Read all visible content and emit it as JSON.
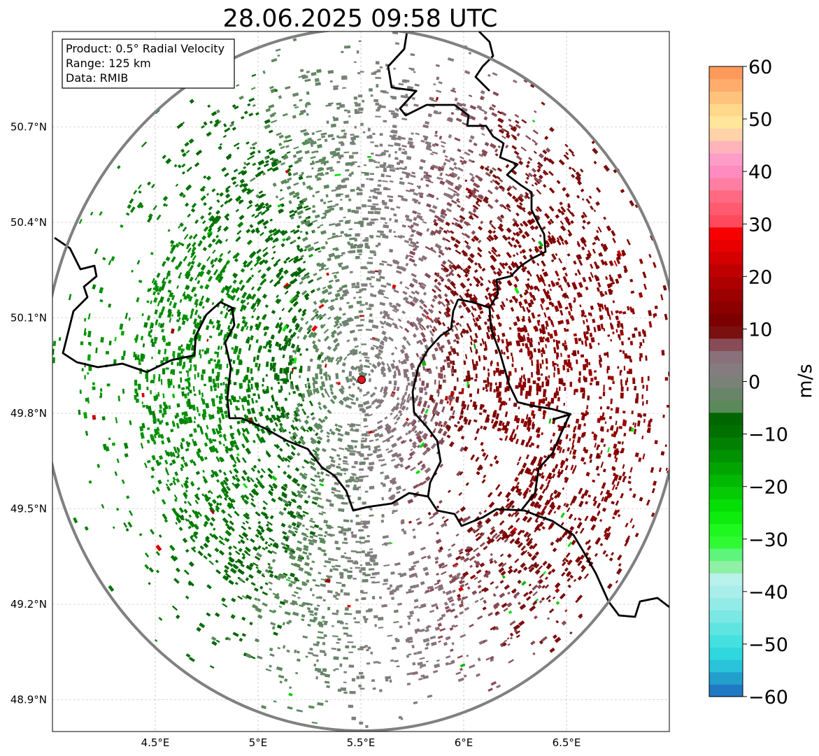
{
  "title": "28.06.2025 09:58 UTC",
  "info_box": {
    "product": "Product: 0.5° Radial Velocity",
    "range": "Range: 125 km",
    "data": "Data: RMIB"
  },
  "map": {
    "lon_range": [
      4.0,
      7.0
    ],
    "lat_range": [
      48.8,
      51.0
    ],
    "lon_ticks": [
      {
        "value": 4.5,
        "label": "4.5°E"
      },
      {
        "value": 5.0,
        "label": "5°E"
      },
      {
        "value": 5.5,
        "label": "5.5°E"
      },
      {
        "value": 6.0,
        "label": "6°E"
      },
      {
        "value": 6.5,
        "label": "6.5°E"
      }
    ],
    "lat_ticks": [
      {
        "value": 50.7,
        "label": "50.7°N"
      },
      {
        "value": 50.4,
        "label": "50.4°N"
      },
      {
        "value": 50.1,
        "label": "50.1°N"
      },
      {
        "value": 49.8,
        "label": "49.8°N"
      },
      {
        "value": 49.5,
        "label": "49.5°N"
      },
      {
        "value": 49.2,
        "label": "49.2°N"
      },
      {
        "value": 48.9,
        "label": "48.9°N"
      }
    ],
    "grid": true,
    "radar_site": {
      "lon": 5.505,
      "lat": 49.914
    },
    "range_ring_km": 125,
    "radar_color": "#e8141c",
    "ring_color": "#808080",
    "border_color": "#000000"
  },
  "colorbar": {
    "label": "m/s",
    "vmin": -60,
    "vmax": 60,
    "ticks": [
      {
        "value": 60,
        "label": "60"
      },
      {
        "value": 50,
        "label": "50"
      },
      {
        "value": 40,
        "label": "40"
      },
      {
        "value": 30,
        "label": "30"
      },
      {
        "value": 20,
        "label": "20"
      },
      {
        "value": 10,
        "label": "10"
      },
      {
        "value": 0,
        "label": "0"
      },
      {
        "value": -10,
        "label": "−10"
      },
      {
        "value": -20,
        "label": "−20"
      },
      {
        "value": -30,
        "label": "−30"
      },
      {
        "value": -40,
        "label": "−40"
      },
      {
        "value": -50,
        "label": "−50"
      },
      {
        "value": -60,
        "label": "−60"
      }
    ],
    "colors": [
      "#2079c3",
      "#239fce",
      "#29c4d9",
      "#2fd8de",
      "#45e0e0",
      "#5fe4e2",
      "#7ae8e5",
      "#93ebe7",
      "#a8eeea",
      "#b9f1ec",
      "#8ff1a3",
      "#5ef57d",
      "#30fa34",
      "#1ef81e",
      "#0dec0d",
      "#05df05",
      "#04cb04",
      "#03b803",
      "#02a402",
      "#029102",
      "#018001",
      "#007000",
      "#006600",
      "#5a8a5a",
      "#68856a",
      "#7a8278",
      "#857c80",
      "#8a707a",
      "#874c55",
      "#7a1010",
      "#7d0000",
      "#8c0000",
      "#9c0000",
      "#ad0000",
      "#bf0000",
      "#d40000",
      "#e80000",
      "#f90000",
      "#ff4a5e",
      "#ff5a70",
      "#ff6a82",
      "#ff7fa2",
      "#ff8bc0",
      "#ff9dc9",
      "#ffb4bc",
      "#ffd2a8",
      "#ffe69a",
      "#ffd88a",
      "#ffc27c",
      "#ffac6c",
      "#ff9a5c"
    ]
  },
  "velocity_field": {
    "description_free_cells": true,
    "value_range_ms": [
      -15,
      15
    ]
  }
}
